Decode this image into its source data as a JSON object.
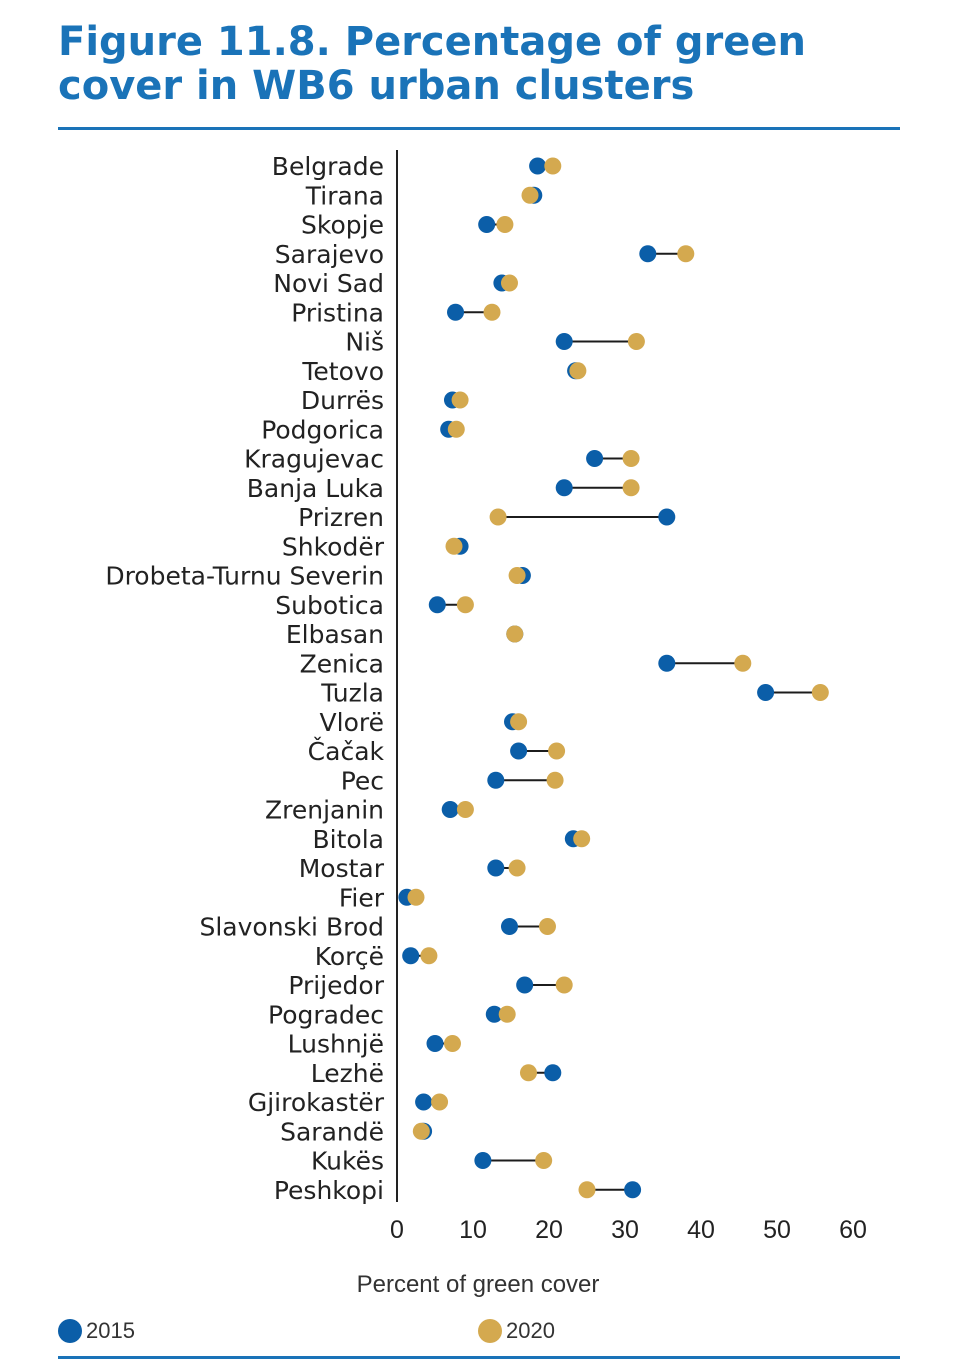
{
  "header": {
    "figure_label": "Figure 11.8.",
    "title_text": "Percentage of green cover in WB6 urban clusters"
  },
  "colors": {
    "accent": "#1a73b8",
    "series_2015": "#0b5ea8",
    "series_2020": "#d4a94f",
    "connector": "#1c1c1c"
  },
  "legend": {
    "items": [
      {
        "label": "2015",
        "color": "#0b5ea8"
      },
      {
        "label": "2020",
        "color": "#d4a94f"
      }
    ]
  },
  "chart_data": {
    "type": "dumbbell",
    "title": "Percentage of green cover in WB6 urban clusters",
    "xlabel": "Percent of green cover",
    "ylabel": "",
    "xlim": [
      0,
      60
    ],
    "xticks": [
      0,
      10,
      20,
      30,
      40,
      50,
      60
    ],
    "grid": false,
    "legend_position": "bottom",
    "categories": [
      "Belgrade",
      "Tirana",
      "Skopje",
      "Sarajevo",
      "Novi Sad",
      "Pristina",
      "Niš",
      "Tetovo",
      "Durrës",
      "Podgorica",
      "Kragujevac",
      "Banja Luka",
      "Prizren",
      "Shkodër",
      "Drobeta-Turnu Severin",
      "Subotica",
      "Elbasan",
      "Zenica",
      "Tuzla",
      "Vlorë",
      "Čačak",
      "Pec",
      "Zrenjanin",
      "Bitola",
      "Mostar",
      "Fier",
      "Slavonski Brod",
      "Korçë",
      "Prijedor",
      "Pogradec",
      "Lushnjë",
      "Lezhë",
      "Gjirokastër",
      "Sarandë",
      "Kukës",
      "Peshkopi"
    ],
    "series": [
      {
        "name": "2015",
        "values": [
          18.5,
          18,
          11.8,
          33,
          13.8,
          7.7,
          22,
          23.5,
          7.3,
          6.8,
          26,
          22,
          35.5,
          8.3,
          16.5,
          5.3,
          15.5,
          35.5,
          48.5,
          15.2,
          16,
          13,
          7,
          23.2,
          13,
          1.3,
          14.8,
          1.8,
          16.8,
          12.8,
          5,
          20.5,
          3.5,
          3.5,
          11.3,
          31
        ]
      },
      {
        "name": "2020",
        "values": [
          20.5,
          17.5,
          14.2,
          38,
          14.8,
          12.5,
          31.5,
          23.8,
          8.3,
          7.8,
          30.8,
          30.8,
          13.3,
          7.5,
          15.8,
          9,
          15.5,
          45.5,
          55.7,
          16,
          21,
          20.8,
          9,
          24.3,
          15.8,
          2.5,
          19.8,
          4.2,
          22,
          14.5,
          7.3,
          17.3,
          5.6,
          3.2,
          19.3,
          25
        ]
      }
    ]
  }
}
